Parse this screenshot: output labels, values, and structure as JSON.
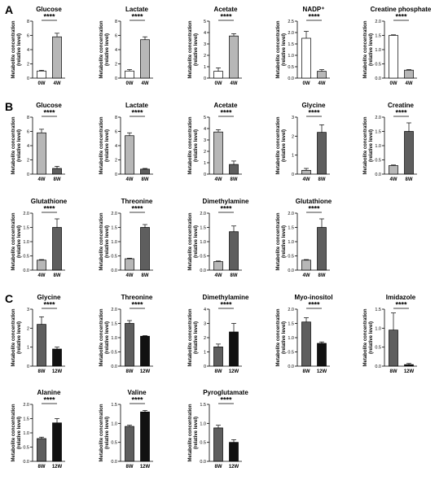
{
  "panels": [
    {
      "letter": "A"
    },
    {
      "letter": "B"
    },
    {
      "letter": "C"
    }
  ],
  "colors": {
    "white": "#ffffff",
    "light_gray": "#b7b7b7",
    "mid_gray": "#5e5e5e",
    "black": "#111111",
    "axis": "#000000"
  },
  "chart_data": [
    {
      "type": "bar",
      "panel": "A",
      "title": "Glucose",
      "ylabel": "Metabolite concentration (relative level)",
      "ylim": [
        0,
        8
      ],
      "yticks": [
        0,
        2,
        4,
        6,
        8
      ],
      "categories": [
        "0W",
        "4W"
      ],
      "values": [
        1.0,
        5.8
      ],
      "errors": [
        0.1,
        0.5
      ],
      "colors": [
        "white",
        "light_gray"
      ],
      "significance": "****"
    },
    {
      "type": "bar",
      "panel": "A",
      "title": "Lactate",
      "ylabel": "Metabolite concentration (relative level)",
      "ylim": [
        0,
        8
      ],
      "yticks": [
        0,
        2,
        4,
        6,
        8
      ],
      "categories": [
        "0W",
        "4W"
      ],
      "values": [
        1.0,
        5.4
      ],
      "errors": [
        0.2,
        0.4
      ],
      "colors": [
        "white",
        "light_gray"
      ],
      "significance": "****"
    },
    {
      "type": "bar",
      "panel": "A",
      "title": "Acetate",
      "ylabel": "Metabolite concentration (relative level)",
      "ylim": [
        0,
        5
      ],
      "yticks": [
        0,
        1,
        2,
        3,
        4,
        5
      ],
      "categories": [
        "0W",
        "4W"
      ],
      "values": [
        0.6,
        3.7
      ],
      "errors": [
        0.3,
        0.2
      ],
      "colors": [
        "white",
        "light_gray"
      ],
      "significance": "****"
    },
    {
      "type": "bar",
      "panel": "A",
      "title": "NADP⁺",
      "ylabel": "Metabolite concentration (relative level)",
      "ylim": [
        0,
        2.5
      ],
      "yticks": [
        0.0,
        0.5,
        1.0,
        1.5,
        2.0,
        2.5
      ],
      "categories": [
        "0W",
        "4W"
      ],
      "values": [
        1.75,
        0.3
      ],
      "errors": [
        0.3,
        0.07
      ],
      "colors": [
        "white",
        "light_gray"
      ],
      "significance": "****"
    },
    {
      "type": "bar",
      "panel": "A",
      "title": "Creatine phosphate",
      "ylabel": "Metabolite concentration (relative level)",
      "ylim": [
        0,
        2.0
      ],
      "yticks": [
        0.0,
        0.5,
        1.0,
        1.5,
        2.0
      ],
      "categories": [
        "0W",
        "4W"
      ],
      "values": [
        1.5,
        0.28
      ],
      "errors": [
        0.02,
        0.02
      ],
      "colors": [
        "white",
        "light_gray"
      ],
      "significance": "****"
    },
    {
      "type": "bar",
      "panel": "B",
      "title": "Glucose",
      "ylabel": "Metabolite concentration (relative level)",
      "ylim": [
        0,
        8
      ],
      "yticks": [
        0,
        2,
        4,
        6,
        8
      ],
      "categories": [
        "4W",
        "8W"
      ],
      "values": [
        5.8,
        0.8
      ],
      "errors": [
        0.5,
        0.3
      ],
      "colors": [
        "light_gray",
        "mid_gray"
      ],
      "significance": "****"
    },
    {
      "type": "bar",
      "panel": "B",
      "title": "Lactate",
      "ylabel": "Metabolite concentration (relative level)",
      "ylim": [
        0,
        8
      ],
      "yticks": [
        0,
        2,
        4,
        6,
        8
      ],
      "categories": [
        "4W",
        "8W"
      ],
      "values": [
        5.4,
        0.7
      ],
      "errors": [
        0.4,
        0.1
      ],
      "colors": [
        "light_gray",
        "mid_gray"
      ],
      "significance": "****"
    },
    {
      "type": "bar",
      "panel": "B",
      "title": "Acetate",
      "ylabel": "Metabolite concentration (relative level)",
      "ylim": [
        0,
        5
      ],
      "yticks": [
        0,
        1,
        2,
        3,
        4,
        5
      ],
      "categories": [
        "4W",
        "8W"
      ],
      "values": [
        3.7,
        0.85
      ],
      "errors": [
        0.2,
        0.3
      ],
      "colors": [
        "light_gray",
        "mid_gray"
      ],
      "significance": "****"
    },
    {
      "type": "bar",
      "panel": "B",
      "title": "Glycine",
      "ylabel": "Metabolite concentration (relative level)",
      "ylim": [
        0,
        3
      ],
      "yticks": [
        0,
        1,
        2,
        3
      ],
      "categories": [
        "4W",
        "8W"
      ],
      "values": [
        0.2,
        2.2
      ],
      "errors": [
        0.1,
        0.4
      ],
      "colors": [
        "light_gray",
        "mid_gray"
      ],
      "significance": "****"
    },
    {
      "type": "bar",
      "panel": "B",
      "title": "Creatine",
      "ylabel": "Metabolite concentration (relative level)",
      "ylim": [
        0,
        2.0
      ],
      "yticks": [
        0.0,
        0.5,
        1.0,
        1.5,
        2.0
      ],
      "categories": [
        "4W",
        "8W"
      ],
      "values": [
        0.3,
        1.5
      ],
      "errors": [
        0.02,
        0.3
      ],
      "colors": [
        "light_gray",
        "mid_gray"
      ],
      "significance": "****"
    },
    {
      "type": "bar",
      "panel": "B",
      "title": "Glutathione",
      "ylabel": "Metabolite concentration (relative level)",
      "ylim": [
        0,
        2.0
      ],
      "yticks": [
        0.0,
        0.5,
        1.0,
        1.5,
        2.0
      ],
      "categories": [
        "4W",
        "8W"
      ],
      "values": [
        0.35,
        1.5
      ],
      "errors": [
        0.02,
        0.3
      ],
      "colors": [
        "light_gray",
        "mid_gray"
      ],
      "significance": "****"
    },
    {
      "type": "bar",
      "panel": "B",
      "title": "Threonine",
      "ylabel": "Metabolite concentration (relative level)",
      "ylim": [
        0,
        2.0
      ],
      "yticks": [
        0.0,
        0.5,
        1.0,
        1.5,
        2.0
      ],
      "categories": [
        "4W",
        "8W"
      ],
      "values": [
        0.4,
        1.5
      ],
      "errors": [
        0.02,
        0.1
      ],
      "colors": [
        "light_gray",
        "mid_gray"
      ],
      "significance": "****"
    },
    {
      "type": "bar",
      "panel": "B",
      "title": "Dimethylamine",
      "ylabel": "Metabolite concentration (relative level)",
      "ylim": [
        0,
        2.0
      ],
      "yticks": [
        0.0,
        0.5,
        1.0,
        1.5,
        2.0
      ],
      "categories": [
        "4W",
        "8W"
      ],
      "values": [
        0.3,
        1.35
      ],
      "errors": [
        0.02,
        0.2
      ],
      "colors": [
        "light_gray",
        "mid_gray"
      ],
      "significance": "****"
    },
    {
      "type": "bar",
      "panel": "B",
      "title": "Glutathione",
      "ylabel": "Metabolite concentration (relative level)",
      "ylim": [
        0,
        2.0
      ],
      "yticks": [
        0.0,
        0.5,
        1.0,
        1.5,
        2.0
      ],
      "categories": [
        "4W",
        "8W"
      ],
      "values": [
        0.35,
        1.5
      ],
      "errors": [
        0.02,
        0.3
      ],
      "colors": [
        "light_gray",
        "mid_gray"
      ],
      "significance": "****"
    },
    {
      "type": "bar",
      "panel": "C",
      "title": "Glycine",
      "ylabel": "Metabolite concentration (relative level)",
      "ylim": [
        0,
        3
      ],
      "yticks": [
        0,
        1,
        2,
        3
      ],
      "categories": [
        "8W",
        "12W"
      ],
      "values": [
        2.2,
        0.9
      ],
      "errors": [
        0.4,
        0.1
      ],
      "colors": [
        "mid_gray",
        "black"
      ],
      "significance": "****"
    },
    {
      "type": "bar",
      "panel": "C",
      "title": "Threonine",
      "ylabel": "Metabolite concentration (relative level)",
      "ylim": [
        0,
        2.0
      ],
      "yticks": [
        0.0,
        0.5,
        1.0,
        1.5,
        2.0
      ],
      "categories": [
        "8W",
        "12W"
      ],
      "values": [
        1.5,
        1.05
      ],
      "errors": [
        0.1,
        0.02
      ],
      "colors": [
        "mid_gray",
        "black"
      ],
      "significance": "****"
    },
    {
      "type": "bar",
      "panel": "C",
      "title": "Dimethylamine",
      "ylabel": "Metabolite concentration (relative level)",
      "ylim": [
        0,
        4
      ],
      "yticks": [
        0,
        1,
        2,
        3,
        4
      ],
      "categories": [
        "8W",
        "12W"
      ],
      "values": [
        1.35,
        2.4
      ],
      "errors": [
        0.2,
        0.6
      ],
      "colors": [
        "mid_gray",
        "black"
      ],
      "significance": "****"
    },
    {
      "type": "bar",
      "panel": "C",
      "title": "Myo-inositol",
      "ylabel": "Metabolite concentration (relative level)",
      "ylim": [
        0,
        2.0
      ],
      "yticks": [
        0.0,
        0.5,
        1.0,
        1.5,
        2.0
      ],
      "categories": [
        "8W",
        "12W"
      ],
      "values": [
        1.55,
        0.8
      ],
      "errors": [
        0.15,
        0.05
      ],
      "colors": [
        "mid_gray",
        "black"
      ],
      "significance": "****"
    },
    {
      "type": "bar",
      "panel": "C",
      "title": "Imidazole",
      "ylabel": "Metabolite concentration (relative level)",
      "ylim": [
        0,
        1.5
      ],
      "yticks": [
        0.0,
        0.5,
        1.0,
        1.5
      ],
      "categories": [
        "8W",
        "12W"
      ],
      "values": [
        0.95,
        0.04
      ],
      "errors": [
        0.45,
        0.03
      ],
      "colors": [
        "mid_gray",
        "black"
      ],
      "significance": "****"
    },
    {
      "type": "bar",
      "panel": "C",
      "title": "Alanine",
      "ylabel": "Metabolite concentration (relative level)",
      "ylim": [
        0,
        2.0
      ],
      "yticks": [
        0.0,
        0.5,
        1.0,
        1.5,
        2.0
      ],
      "categories": [
        "8W",
        "12W"
      ],
      "values": [
        0.8,
        1.35
      ],
      "errors": [
        0.05,
        0.15
      ],
      "colors": [
        "mid_gray",
        "black"
      ],
      "significance": "****"
    },
    {
      "type": "bar",
      "panel": "C",
      "title": "Valine",
      "ylabel": "Metabolite concentration (relative level)",
      "ylim": [
        0,
        1.5
      ],
      "yticks": [
        0.0,
        0.5,
        1.0,
        1.5
      ],
      "categories": [
        "8W",
        "12W"
      ],
      "values": [
        0.92,
        1.3
      ],
      "errors": [
        0.03,
        0.04
      ],
      "colors": [
        "mid_gray",
        "black"
      ],
      "significance": "****"
    },
    {
      "type": "bar",
      "panel": "C",
      "title": "Pyroglutamate",
      "ylabel": "Metabolite concentration (relative level)",
      "ylim": [
        0,
        1.5
      ],
      "yticks": [
        0.0,
        0.5,
        1.0,
        1.5
      ],
      "categories": [
        "8W",
        "12W"
      ],
      "values": [
        0.88,
        0.5
      ],
      "errors": [
        0.07,
        0.07
      ],
      "colors": [
        "mid_gray",
        "black"
      ],
      "significance": "****"
    }
  ]
}
